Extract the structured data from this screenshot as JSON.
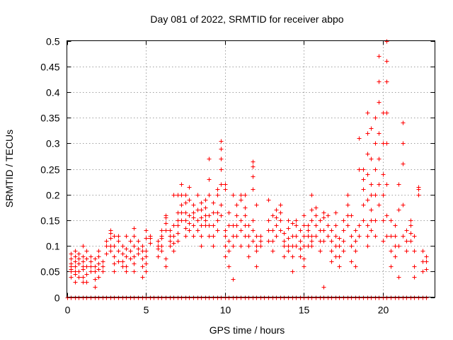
{
  "chart_data": {
    "type": "scatter",
    "title": "Day 081 of 2022, SRMTID for receiver abpo",
    "xlabel": "GPS time / hours",
    "ylabel": "SRMTID / TECUs",
    "xlim": [
      0,
      23.3
    ],
    "ylim": [
      0,
      0.5
    ],
    "x_ticks": [
      0,
      5,
      10,
      15,
      20
    ],
    "x_tick_labels": [
      "0",
      "5",
      "10",
      "15",
      "20"
    ],
    "y_ticks": [
      0,
      0.05,
      0.1,
      0.15,
      0.2,
      0.25,
      0.3,
      0.35,
      0.4,
      0.45,
      0.5
    ],
    "y_tick_labels": [
      "0",
      "0.05",
      "0.1",
      "0.15",
      "0.2",
      "0.25",
      "0.3",
      "0.35",
      "0.4",
      "0.45",
      "0.5"
    ],
    "grid": true,
    "marker": "plus",
    "color": "#ff0000",
    "series": [
      {
        "name": "SRMTID",
        "clusters": [
          {
            "x": 0.25,
            "y": [
              0.04,
              0.055,
              0.065,
              0.075,
              0.085,
              0.05,
              0.06
            ]
          },
          {
            "x": 0.5,
            "y": [
              0.03,
              0.045,
              0.06,
              0.07,
              0.08,
              0.09,
              0.05
            ]
          },
          {
            "x": 0.75,
            "y": [
              0.04,
              0.05,
              0.065,
              0.075,
              0.085
            ]
          },
          {
            "x": 1.0,
            "y": [
              0.03,
              0.04,
              0.055,
              0.07,
              0.08,
              0.1,
              0.06
            ]
          },
          {
            "x": 1.25,
            "y": [
              0.03,
              0.045,
              0.06,
              0.075,
              0.09
            ]
          },
          {
            "x": 1.5,
            "y": [
              0.05,
              0.06,
              0.07,
              0.08
            ]
          },
          {
            "x": 1.75,
            "y": [
              0.02,
              0.035,
              0.05,
              0.06,
              0.075
            ]
          },
          {
            "x": 2.0,
            "y": [
              0.04,
              0.055,
              0.065,
              0.08,
              0.09
            ]
          },
          {
            "x": 2.25,
            "y": [
              0.05,
              0.06,
              0.07
            ]
          },
          {
            "x": 2.5,
            "y": [
              0.085,
              0.1,
              0.11
            ]
          },
          {
            "x": 2.75,
            "y": [
              0.09,
              0.1,
              0.115,
              0.125,
              0.13
            ]
          },
          {
            "x": 3.0,
            "y": [
              0.05,
              0.065,
              0.08,
              0.1,
              0.12
            ]
          },
          {
            "x": 3.25,
            "y": [
              0.07,
              0.09,
              0.11,
              0.12
            ]
          },
          {
            "x": 3.5,
            "y": [
              0.06,
              0.07,
              0.085,
              0.1
            ]
          },
          {
            "x": 3.75,
            "y": [
              0.05,
              0.06,
              0.08,
              0.095,
              0.12
            ]
          },
          {
            "x": 4.0,
            "y": [
              0.075,
              0.09,
              0.11
            ]
          },
          {
            "x": 4.25,
            "y": [
              0.05,
              0.065,
              0.08,
              0.1,
              0.12,
              0.135
            ]
          },
          {
            "x": 4.5,
            "y": [
              0.085,
              0.095,
              0.11
            ]
          },
          {
            "x": 4.75,
            "y": [
              0.04,
              0.06,
              0.075,
              0.09,
              0.1
            ]
          },
          {
            "x": 5.0,
            "y": [
              0.05,
              0.065,
              0.08,
              0.09,
              0.115,
              0.13
            ]
          },
          {
            "x": 5.25,
            "y": [
              0.105,
              0.115,
              0.12
            ]
          },
          {
            "x": 5.75,
            "y": [
              0.08,
              0.095,
              0.1,
              0.11
            ]
          },
          {
            "x": 6.0,
            "y": [
              0.09,
              0.1,
              0.115,
              0.12,
              0.13
            ]
          },
          {
            "x": 6.25,
            "y": [
              0.06,
              0.075,
              0.13,
              0.145,
              0.155,
              0.16
            ]
          },
          {
            "x": 6.5,
            "y": [
              0.1,
              0.11,
              0.12,
              0.13
            ]
          },
          {
            "x": 6.75,
            "y": [
              0.09,
              0.105,
              0.12,
              0.14,
              0.2
            ]
          },
          {
            "x": 7.0,
            "y": [
              0.11,
              0.125,
              0.14,
              0.15,
              0.165,
              0.2
            ]
          },
          {
            "x": 7.25,
            "y": [
              0.15,
              0.165,
              0.18,
              0.2,
              0.22
            ]
          },
          {
            "x": 7.5,
            "y": [
              0.12,
              0.135,
              0.15,
              0.165,
              0.185,
              0.2
            ]
          },
          {
            "x": 7.75,
            "y": [
              0.13,
              0.145,
              0.16,
              0.19,
              0.215
            ]
          },
          {
            "x": 8.0,
            "y": [
              0.12,
              0.14,
              0.155,
              0.165,
              0.18
            ]
          },
          {
            "x": 8.25,
            "y": [
              0.13,
              0.15,
              0.17,
              0.2
            ]
          },
          {
            "x": 8.5,
            "y": [
              0.1,
              0.12,
              0.14,
              0.155,
              0.17,
              0.185
            ]
          },
          {
            "x": 8.75,
            "y": [
              0.14,
              0.15,
              0.16,
              0.175,
              0.19
            ]
          },
          {
            "x": 9.0,
            "y": [
              0.12,
              0.14,
              0.16,
              0.2,
              0.23,
              0.27
            ]
          },
          {
            "x": 9.25,
            "y": [
              0.1,
              0.12,
              0.14,
              0.165,
              0.185
            ]
          },
          {
            "x": 9.5,
            "y": [
              0.13,
              0.15,
              0.165,
              0.2,
              0.21
            ]
          },
          {
            "x": 9.75,
            "y": [
              0.16,
              0.18,
              0.22,
              0.25,
              0.27,
              0.29,
              0.305
            ]
          },
          {
            "x": 10.0,
            "y": [
              0.08,
              0.1,
              0.12,
              0.13,
              0.21,
              0.22
            ]
          },
          {
            "x": 10.25,
            "y": [
              0.06,
              0.09,
              0.11,
              0.14,
              0.165
            ]
          },
          {
            "x": 10.5,
            "y": [
              0.035,
              0.1,
              0.12,
              0.14,
              0.2
            ]
          },
          {
            "x": 10.75,
            "y": [
              0.12,
              0.14,
              0.16,
              0.18
            ]
          },
          {
            "x": 11.0,
            "y": [
              0.1,
              0.13,
              0.15,
              0.19,
              0.2
            ]
          },
          {
            "x": 11.25,
            "y": [
              0.12,
              0.14,
              0.16,
              0.175,
              0.2
            ]
          },
          {
            "x": 11.5,
            "y": [
              0.08,
              0.1,
              0.12,
              0.14
            ]
          },
          {
            "x": 11.75,
            "y": [
              0.11,
              0.13,
              0.15,
              0.21,
              0.235,
              0.255,
              0.265
            ]
          },
          {
            "x": 12.0,
            "y": [
              0.06,
              0.09,
              0.1,
              0.12,
              0.18
            ]
          },
          {
            "x": 12.25,
            "y": [
              0.1,
              0.11,
              0.12
            ]
          },
          {
            "x": 12.75,
            "y": [
              0.11,
              0.13,
              0.15,
              0.19
            ]
          },
          {
            "x": 13.0,
            "y": [
              0.09,
              0.11,
              0.13,
              0.16
            ]
          },
          {
            "x": 13.25,
            "y": [
              0.12,
              0.14,
              0.155,
              0.17
            ]
          },
          {
            "x": 13.5,
            "y": [
              0.13,
              0.15,
              0.165,
              0.18
            ]
          },
          {
            "x": 13.75,
            "y": [
              0.08,
              0.1,
              0.11,
              0.125
            ]
          },
          {
            "x": 14.0,
            "y": [
              0.09,
              0.1,
              0.115,
              0.135,
              0.15
            ]
          },
          {
            "x": 14.25,
            "y": [
              0.05,
              0.08,
              0.1,
              0.12,
              0.145
            ]
          },
          {
            "x": 14.5,
            "y": [
              0.1,
              0.12,
              0.14,
              0.15
            ]
          },
          {
            "x": 14.75,
            "y": [
              0.08,
              0.095,
              0.11,
              0.13
            ]
          },
          {
            "x": 15.0,
            "y": [
              0.06,
              0.075,
              0.1,
              0.12,
              0.14,
              0.16
            ]
          },
          {
            "x": 15.25,
            "y": [
              0.1,
              0.12,
              0.13,
              0.14
            ]
          },
          {
            "x": 15.5,
            "y": [
              0.1,
              0.11,
              0.12,
              0.15,
              0.17,
              0.2
            ]
          },
          {
            "x": 15.75,
            "y": [
              0.12,
              0.14,
              0.16,
              0.175
            ]
          },
          {
            "x": 16.0,
            "y": [
              0.09,
              0.11,
              0.13,
              0.15
            ]
          },
          {
            "x": 16.25,
            "y": [
              0.02,
              0.11,
              0.13,
              0.155,
              0.165
            ]
          },
          {
            "x": 16.5,
            "y": [
              0.12,
              0.14,
              0.16
            ]
          },
          {
            "x": 16.75,
            "y": [
              0.07,
              0.09,
              0.11,
              0.13
            ]
          },
          {
            "x": 17.0,
            "y": [
              0.08,
              0.1,
              0.12,
              0.14,
              0.165
            ]
          },
          {
            "x": 17.25,
            "y": [
              0.06,
              0.08,
              0.1,
              0.115
            ]
          },
          {
            "x": 17.5,
            "y": [
              0.09,
              0.11,
              0.13,
              0.15
            ]
          },
          {
            "x": 17.75,
            "y": [
              0.14,
              0.16,
              0.18,
              0.2
            ]
          },
          {
            "x": 18.0,
            "y": [
              0.07,
              0.1,
              0.12,
              0.16
            ]
          },
          {
            "x": 18.25,
            "y": [
              0.06,
              0.09,
              0.11,
              0.13
            ]
          },
          {
            "x": 18.5,
            "y": [
              0.12,
              0.14,
              0.25,
              0.31
            ]
          },
          {
            "x": 18.75,
            "y": [
              0.15,
              0.18,
              0.21,
              0.23,
              0.25
            ]
          },
          {
            "x": 19.0,
            "y": [
              0.1,
              0.12,
              0.14,
              0.19,
              0.24,
              0.28,
              0.32,
              0.36
            ]
          },
          {
            "x": 19.25,
            "y": [
              0.13,
              0.15,
              0.17,
              0.2,
              0.22,
              0.27,
              0.33
            ]
          },
          {
            "x": 19.5,
            "y": [
              0.12,
              0.15,
              0.2,
              0.25,
              0.3,
              0.35
            ]
          },
          {
            "x": 19.75,
            "y": [
              0.18,
              0.22,
              0.27,
              0.32,
              0.38,
              0.42,
              0.47
            ]
          },
          {
            "x": 20.0,
            "y": [
              0.11,
              0.15,
              0.2,
              0.24,
              0.3,
              0.36
            ]
          },
          {
            "x": 20.25,
            "y": [
              0.12,
              0.16,
              0.22,
              0.3,
              0.36,
              0.42,
              0.46,
              0.5
            ]
          },
          {
            "x": 20.5,
            "y": [
              0.06,
              0.09,
              0.12,
              0.15
            ]
          },
          {
            "x": 20.75,
            "y": [
              0.08,
              0.1,
              0.12,
              0.14
            ]
          },
          {
            "x": 21.0,
            "y": [
              0.04,
              0.1,
              0.17,
              0.22
            ]
          },
          {
            "x": 21.25,
            "y": [
              0.12,
              0.18,
              0.26,
              0.3,
              0.34
            ]
          },
          {
            "x": 21.5,
            "y": [
              0.09,
              0.11,
              0.13
            ]
          },
          {
            "x": 21.75,
            "y": [
              0.11,
              0.125,
              0.14,
              0.15
            ]
          },
          {
            "x": 22.0,
            "y": [
              0.04,
              0.06,
              0.09,
              0.12
            ]
          },
          {
            "x": 22.25,
            "y": [
              0.2,
              0.21,
              0.215
            ]
          },
          {
            "x": 22.5,
            "y": [
              0.05,
              0.07,
              0.09
            ]
          },
          {
            "x": 22.75,
            "y": [
              0.055,
              0.07,
              0.08
            ]
          }
        ],
        "zero_values_x_range": [
          0,
          22.8
        ]
      }
    ]
  }
}
